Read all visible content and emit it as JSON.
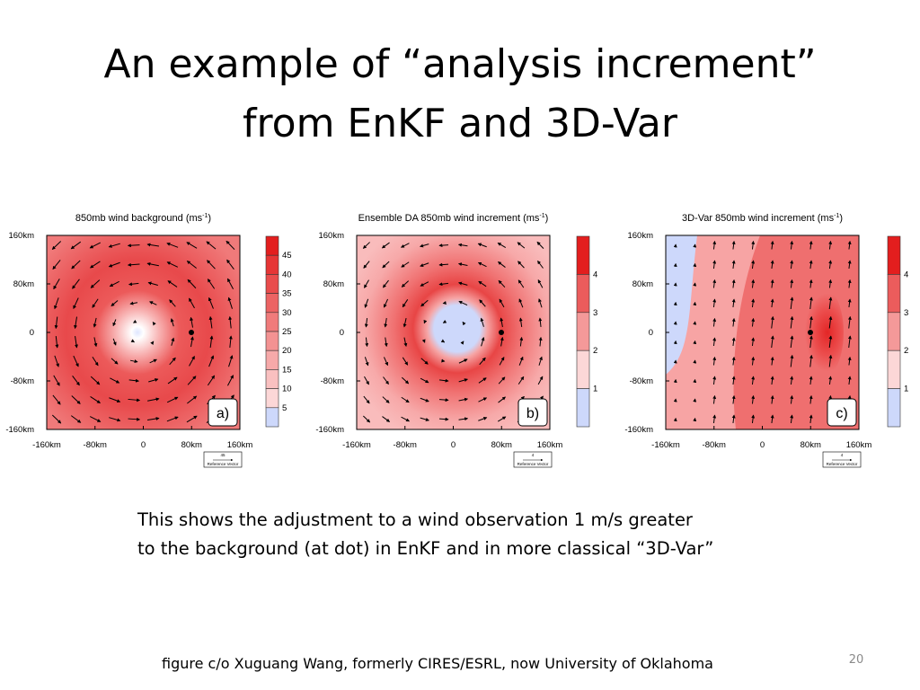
{
  "slide": {
    "title_lines": [
      "An example of “analysis increment”",
      "from EnKF and 3D-Var"
    ],
    "caption_lines": [
      "This shows the adjustment to a wind observation 1 m/s greater",
      "to the background (at dot) in EnKF and in more classical “3D-Var”"
    ],
    "credit": "figure c/o Xuguang Wang, formerly CIRES/ESRL, now University of Oklahoma",
    "page_number": "20"
  },
  "panels": [
    {
      "title": "850mb wind background (ms",
      "title_sup": "-1",
      "title_end": ")",
      "label": "a)",
      "y_ticks": [
        "160km",
        "80km",
        "0",
        "-80km",
        "-160km"
      ],
      "x_ticks": [
        "-160km",
        "-80km",
        "0",
        "80km",
        "160km"
      ],
      "colorbar_ticks": [
        "45",
        "40",
        "35",
        "30",
        "25",
        "20",
        "15",
        "10",
        "5"
      ],
      "reference_value": "45",
      "reference_label": "Reference Vector"
    },
    {
      "title": "Ensemble DA 850mb wind increment (ms",
      "title_sup": "-1",
      "title_end": ")",
      "label": "b)",
      "y_ticks": [
        "160km",
        "80km",
        "0",
        "-80km",
        "-160km"
      ],
      "x_ticks": [
        "-160km",
        "-80km",
        "0",
        "80km",
        "160km"
      ],
      "colorbar_ticks": [
        "4",
        "3",
        "2",
        "1"
      ],
      "reference_value": "4",
      "reference_label": "Reference Vector"
    },
    {
      "title": "3D-Var 850mb wind increment (ms",
      "title_sup": "-1",
      "title_end": ")",
      "label": "c)",
      "y_ticks": [
        "160km",
        "80km",
        "0",
        "-80km",
        "-160km"
      ],
      "x_ticks": [
        "-160km",
        "-80km",
        "0",
        "80km",
        "160km"
      ],
      "colorbar_ticks": [
        "4",
        "3",
        "2",
        "1"
      ],
      "reference_value": "4",
      "reference_label": "Reference Vector"
    }
  ]
}
